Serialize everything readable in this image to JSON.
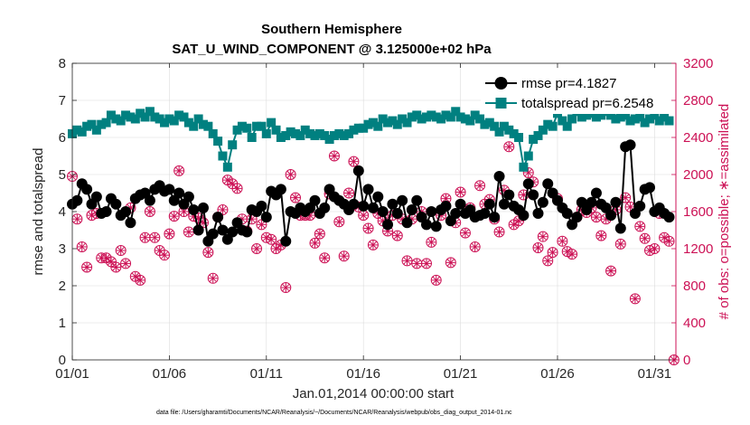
{
  "chart_data": {
    "type": "line",
    "title": "Southern Hemisphere",
    "subtitle": "SAT_U_WIND_COMPONENT @ 3.125000e+02 hPa",
    "xlabel": "Jan.01,2014 00:00:00 start",
    "ylabel": "rmse and totalspread",
    "y2label": "# of obs: o=possible; ∗=assimilated",
    "footnote": "data file: /Users/gharamti/Documents/NCAR/Reanalysis/~/Documents/NCAR/Reanalysis/webpub/obs_diag_output_2014-01.nc",
    "x_ticks": [
      "01/01",
      "01/06",
      "01/11",
      "01/16",
      "01/21",
      "01/26",
      "01/31"
    ],
    "x_tick_days": [
      1,
      6,
      11,
      16,
      21,
      26,
      31
    ],
    "xlim_days": [
      1,
      32.1
    ],
    "y_ticks": [
      "0",
      "1",
      "2",
      "3",
      "4",
      "5",
      "6",
      "7",
      "8"
    ],
    "ylim": [
      0,
      8
    ],
    "y2_ticks": [
      "0",
      "400",
      "800",
      "1200",
      "1600",
      "2000",
      "2400",
      "2800",
      "3200"
    ],
    "y2lim": [
      0,
      3200
    ],
    "grid": true,
    "legend_position": "top-right",
    "colors": {
      "rmse": "#000000",
      "spread": "#008080",
      "obs": "#cc1155"
    },
    "series": [
      {
        "name": "rmse pr=4.1827",
        "axis": "left",
        "marker": "circle",
        "x_days": [
          1,
          1.25,
          1.5,
          1.75,
          2,
          2.25,
          2.5,
          2.75,
          3,
          3.25,
          3.5,
          3.75,
          4,
          4.25,
          4.5,
          4.75,
          5,
          5.25,
          5.5,
          5.75,
          6,
          6.25,
          6.5,
          6.75,
          7,
          7.25,
          7.5,
          7.75,
          8,
          8.25,
          8.5,
          8.75,
          9,
          9.25,
          9.5,
          9.75,
          10,
          10.25,
          10.5,
          10.75,
          11,
          11.25,
          11.5,
          11.75,
          12,
          12.25,
          12.5,
          12.75,
          13,
          13.25,
          13.5,
          13.75,
          14,
          14.25,
          14.5,
          14.75,
          15,
          15.25,
          15.5,
          15.75,
          16,
          16.25,
          16.5,
          16.75,
          17,
          17.25,
          17.5,
          17.75,
          18,
          18.25,
          18.5,
          18.75,
          19,
          19.25,
          19.5,
          19.75,
          20,
          20.25,
          20.5,
          20.75,
          21,
          21.25,
          21.5,
          21.75,
          22,
          22.25,
          22.5,
          22.75,
          23,
          23.25,
          23.5,
          23.75,
          24,
          24.25,
          24.5,
          24.75,
          25,
          25.25,
          25.5,
          25.75,
          26,
          26.25,
          26.5,
          26.75,
          27,
          27.25,
          27.5,
          27.75,
          28,
          28.25,
          28.5,
          28.75,
          29,
          29.25,
          29.5,
          29.75,
          30,
          30.25,
          30.5,
          30.75,
          31,
          31.25,
          31.5,
          31.75
        ],
        "values": [
          4.2,
          4.3,
          4.75,
          4.6,
          4.2,
          4.4,
          3.95,
          4.0,
          4.35,
          4.2,
          3.9,
          4.0,
          3.7,
          4.35,
          4.45,
          4.5,
          4.3,
          4.6,
          4.7,
          4.55,
          4.6,
          4.3,
          4.5,
          4.2,
          4.4,
          4.05,
          3.5,
          4.1,
          3.2,
          3.4,
          3.85,
          3.5,
          3.25,
          3.45,
          3.7,
          3.5,
          3.45,
          4.05,
          4.0,
          4.15,
          3.85,
          4.55,
          4.45,
          4.6,
          3.2,
          4.0,
          3.95,
          4.1,
          4.0,
          4.1,
          4.3,
          3.95,
          4.1,
          4.6,
          4.4,
          4.3,
          4.2,
          4.05,
          4.2,
          5.1,
          4.15,
          4.6,
          4.1,
          4.4,
          4.0,
          3.65,
          4.2,
          3.95,
          4.3,
          3.7,
          4.05,
          4.3,
          3.85,
          3.65,
          4.0,
          3.6,
          4.05,
          4.15,
          3.75,
          3.95,
          4.2,
          3.95,
          4.05,
          3.85,
          3.9,
          3.95,
          4.2,
          3.85,
          4.95,
          4.2,
          4.45,
          4.15,
          4.05,
          3.9,
          4.75,
          4.45,
          3.95,
          4.25,
          4.75,
          4.5,
          4.3,
          4.1,
          3.95,
          3.65,
          3.85,
          4.25,
          4.05,
          4.25,
          4.5,
          4.2,
          4.1,
          3.9,
          4.25,
          3.55,
          5.75,
          5.8,
          3.95,
          4.15,
          4.6,
          4.65,
          4.0,
          4.1,
          3.95,
          3.85
        ]
      },
      {
        "name": "totalspread pr=6.2548",
        "axis": "left",
        "marker": "square",
        "x_days": [
          1,
          1.25,
          1.5,
          1.75,
          2,
          2.25,
          2.5,
          2.75,
          3,
          3.25,
          3.5,
          3.75,
          4,
          4.25,
          4.5,
          4.75,
          5,
          5.25,
          5.5,
          5.75,
          6,
          6.25,
          6.5,
          6.75,
          7,
          7.25,
          7.5,
          7.75,
          8,
          8.25,
          8.5,
          8.75,
          9,
          9.25,
          9.5,
          9.75,
          10,
          10.25,
          10.5,
          10.75,
          11,
          11.25,
          11.5,
          11.75,
          12,
          12.25,
          12.5,
          12.75,
          13,
          13.25,
          13.5,
          13.75,
          14,
          14.25,
          14.5,
          14.75,
          15,
          15.25,
          15.5,
          15.75,
          16,
          16.25,
          16.5,
          16.75,
          17,
          17.25,
          17.5,
          17.75,
          18,
          18.25,
          18.5,
          18.75,
          19,
          19.25,
          19.5,
          19.75,
          20,
          20.25,
          20.5,
          20.75,
          21,
          21.25,
          21.5,
          21.75,
          22,
          22.25,
          22.5,
          22.75,
          23,
          23.25,
          23.5,
          23.75,
          24,
          24.25,
          24.5,
          24.75,
          25,
          25.25,
          25.5,
          25.75,
          26,
          26.25,
          26.5,
          26.75,
          27,
          27.25,
          27.5,
          27.75,
          28,
          28.25,
          28.5,
          28.75,
          29,
          29.25,
          29.5,
          29.75,
          30,
          30.25,
          30.5,
          30.75,
          31,
          31.25,
          31.5,
          31.75
        ],
        "values": [
          6.1,
          6.2,
          6.15,
          6.3,
          6.35,
          6.2,
          6.35,
          6.4,
          6.6,
          6.5,
          6.45,
          6.6,
          6.55,
          6.5,
          6.65,
          6.55,
          6.7,
          6.55,
          6.5,
          6.4,
          6.5,
          6.45,
          6.6,
          6.55,
          6.4,
          6.3,
          6.5,
          6.35,
          6.3,
          6.1,
          5.9,
          5.5,
          5.2,
          5.8,
          6.2,
          6.3,
          6.25,
          6.0,
          6.3,
          6.3,
          6.1,
          6.4,
          6.2,
          6.0,
          6.05,
          6.15,
          6.1,
          6.05,
          6.2,
          6.1,
          6.05,
          6.1,
          6.05,
          5.95,
          6.05,
          6.1,
          6.05,
          6.1,
          6.2,
          6.25,
          6.25,
          6.35,
          6.4,
          6.3,
          6.5,
          6.4,
          6.45,
          6.35,
          6.5,
          6.4,
          6.55,
          6.6,
          6.5,
          6.55,
          6.6,
          6.55,
          6.5,
          6.6,
          6.55,
          6.7,
          6.55,
          6.5,
          6.45,
          6.6,
          6.5,
          6.35,
          6.4,
          6.3,
          6.15,
          6.3,
          6.2,
          6.1,
          6.0,
          5.2,
          5.5,
          5.95,
          6.05,
          6.2,
          6.35,
          6.3,
          6.65,
          6.45,
          6.3,
          6.5,
          6.7,
          6.55,
          6.6,
          6.65,
          6.55,
          6.6,
          6.7,
          6.6,
          6.5,
          6.55,
          6.6,
          6.45,
          6.5,
          6.55,
          6.4,
          6.5,
          6.6,
          6.45,
          6.55,
          6.45
        ]
      },
      {
        "name": "obs possible",
        "axis": "right",
        "marker": "circle-open",
        "x_days": [
          1,
          1.25,
          1.5,
          1.75,
          2,
          2.25,
          2.5,
          2.75,
          3,
          3.25,
          3.5,
          3.75,
          4,
          4.25,
          4.5,
          4.75,
          5,
          5.25,
          5.5,
          5.75,
          6,
          6.25,
          6.5,
          6.75,
          7,
          7.25,
          7.5,
          7.75,
          8,
          8.25,
          8.5,
          8.75,
          9,
          9.25,
          9.5,
          9.75,
          10,
          10.25,
          10.5,
          10.75,
          11,
          11.25,
          11.5,
          11.75,
          12,
          12.25,
          12.5,
          12.75,
          13,
          13.25,
          13.5,
          13.75,
          14,
          14.25,
          14.5,
          14.75,
          15,
          15.25,
          15.5,
          15.75,
          16,
          16.25,
          16.5,
          16.75,
          17,
          17.25,
          17.5,
          17.75,
          18,
          18.25,
          18.5,
          18.75,
          19,
          19.25,
          19.5,
          19.75,
          20,
          20.25,
          20.5,
          20.75,
          21,
          21.25,
          21.5,
          21.75,
          22,
          22.25,
          22.5,
          22.75,
          23,
          23.25,
          23.5,
          23.75,
          24,
          24.25,
          24.5,
          24.75,
          25,
          25.25,
          25.5,
          25.75,
          26,
          26.25,
          26.5,
          26.75,
          27,
          27.25,
          27.5,
          27.75,
          28,
          28.25,
          28.5,
          28.75,
          29,
          29.25,
          29.5,
          29.75,
          30,
          30.25,
          30.5,
          30.75,
          31,
          31.25,
          31.5,
          31.75,
          32
        ],
        "values": [
          1980,
          1520,
          1220,
          1000,
          1560,
          1580,
          1100,
          1100,
          1060,
          1000,
          1180,
          1040,
          1640,
          900,
          860,
          1320,
          1600,
          1320,
          1180,
          1130,
          1360,
          1550,
          2040,
          1600,
          1380,
          1550,
          1530,
          1480,
          1160,
          880,
          1540,
          1620,
          1940,
          1900,
          1850,
          1520,
          1390,
          1520,
          1200,
          1460,
          1320,
          1300,
          1200,
          1240,
          780,
          2000,
          1750,
          1560,
          1560,
          1560,
          1260,
          1360,
          1100,
          1790,
          2200,
          1490,
          1120,
          1800,
          2140,
          1650,
          1560,
          1420,
          1240,
          1580,
          1500,
          1390,
          1560,
          1340,
          1520,
          1070,
          1520,
          1040,
          1600,
          1040,
          1270,
          860,
          1560,
          1740,
          1050,
          1480,
          1810,
          1370,
          1640,
          1220,
          1880,
          1680,
          1730,
          1520,
          1380,
          1830,
          2300,
          1460,
          1500,
          1780,
          2020,
          1920,
          1210,
          1330,
          1070,
          1160,
          1740,
          1280,
          1170,
          1140,
          1540,
          1620,
          1590,
          1640,
          1540,
          1340,
          1520,
          960,
          1620,
          1250,
          1750,
          1650,
          660,
          1440,
          1310,
          1180,
          1200,
          1580,
          1320,
          1280,
          0
        ]
      },
      {
        "name": "obs assimilated",
        "axis": "right",
        "marker": "asterisk",
        "x_days": [
          1,
          1.25,
          1.5,
          1.75,
          2,
          2.25,
          2.5,
          2.75,
          3,
          3.25,
          3.5,
          3.75,
          4,
          4.25,
          4.5,
          4.75,
          5,
          5.25,
          5.5,
          5.75,
          6,
          6.25,
          6.5,
          6.75,
          7,
          7.25,
          7.5,
          7.75,
          8,
          8.25,
          8.5,
          8.75,
          9,
          9.25,
          9.5,
          9.75,
          10,
          10.25,
          10.5,
          10.75,
          11,
          11.25,
          11.5,
          11.75,
          12,
          12.25,
          12.5,
          12.75,
          13,
          13.25,
          13.5,
          13.75,
          14,
          14.25,
          14.5,
          14.75,
          15,
          15.25,
          15.5,
          15.75,
          16,
          16.25,
          16.5,
          16.75,
          17,
          17.25,
          17.5,
          17.75,
          18,
          18.25,
          18.5,
          18.75,
          19,
          19.25,
          19.5,
          19.75,
          20,
          20.25,
          20.5,
          20.75,
          21,
          21.25,
          21.5,
          21.75,
          22,
          22.25,
          22.5,
          22.75,
          23,
          23.25,
          23.5,
          23.75,
          24,
          24.25,
          24.5,
          24.75,
          25,
          25.25,
          25.5,
          25.75,
          26,
          26.25,
          26.5,
          26.75,
          27,
          27.25,
          27.5,
          27.75,
          28,
          28.25,
          28.5,
          28.75,
          29,
          29.25,
          29.5,
          29.75,
          30,
          30.25,
          30.5,
          30.75,
          31,
          31.25,
          31.5,
          31.75,
          32
        ],
        "values": [
          1980,
          1520,
          1220,
          1000,
          1560,
          1580,
          1100,
          1100,
          1060,
          1000,
          1180,
          1040,
          1640,
          900,
          860,
          1320,
          1600,
          1320,
          1180,
          1130,
          1360,
          1550,
          2040,
          1600,
          1380,
          1550,
          1530,
          1480,
          1160,
          880,
          1540,
          1620,
          1940,
          1900,
          1850,
          1520,
          1390,
          1520,
          1200,
          1460,
          1320,
          1300,
          1200,
          1240,
          780,
          2000,
          1750,
          1560,
          1560,
          1560,
          1260,
          1360,
          1100,
          1790,
          2200,
          1490,
          1120,
          1800,
          2140,
          1650,
          1560,
          1420,
          1240,
          1580,
          1500,
          1390,
          1560,
          1340,
          1520,
          1070,
          1520,
          1040,
          1600,
          1040,
          1270,
          860,
          1560,
          1740,
          1050,
          1480,
          1810,
          1370,
          1640,
          1220,
          1880,
          1680,
          1730,
          1520,
          1380,
          1830,
          2300,
          1460,
          1500,
          1780,
          2020,
          1920,
          1210,
          1330,
          1070,
          1160,
          1740,
          1280,
          1170,
          1140,
          1540,
          1620,
          1590,
          1640,
          1540,
          1340,
          1520,
          960,
          1620,
          1250,
          1750,
          1650,
          660,
          1440,
          1310,
          1180,
          1200,
          1580,
          1320,
          1280,
          0
        ]
      }
    ]
  }
}
